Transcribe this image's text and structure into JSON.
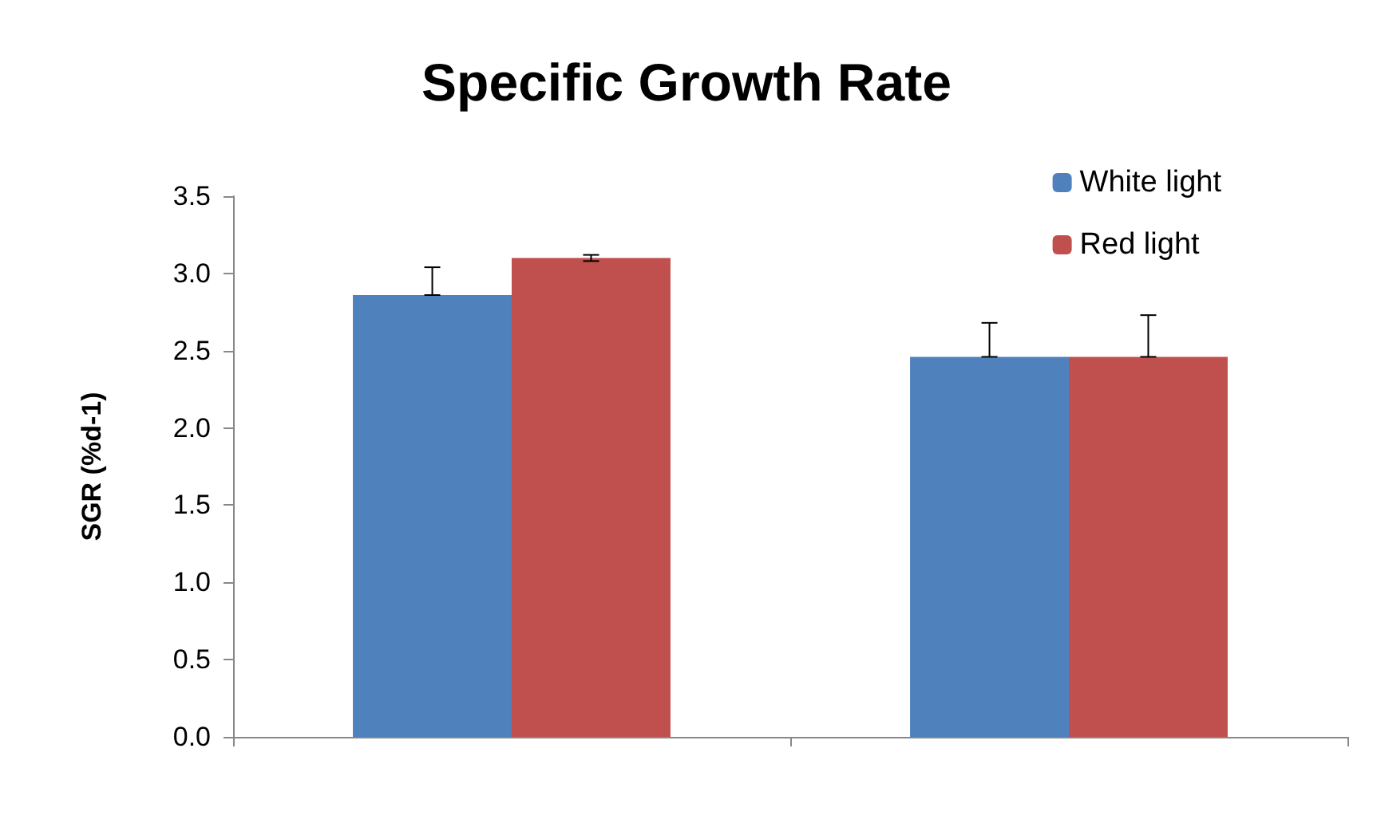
{
  "chart_data": {
    "type": "bar",
    "title": "Specific Growth Rate",
    "ylabel": "SGR (%d-1)",
    "categories": [
      null,
      null
    ],
    "series": [
      {
        "name": "White light",
        "color": "#4f81bd",
        "values": [
          2.86,
          2.46
        ],
        "errors": [
          [
            2.86,
            3.04
          ],
          [
            2.46,
            2.68
          ]
        ]
      },
      {
        "name": "Red light",
        "color": "#c0504d",
        "values": [
          3.1,
          2.46
        ],
        "errors": [
          [
            3.08,
            3.12
          ],
          [
            2.46,
            2.73
          ]
        ]
      }
    ],
    "ylim": [
      0,
      3.5
    ],
    "yticks": [
      {
        "value": 0,
        "label": "0.0"
      },
      0.5,
      {
        "value": 1,
        "label": "1.0"
      },
      1.5,
      {
        "value": 2,
        "label": "2.0"
      },
      2.5,
      {
        "value": 3,
        "label": "3.0"
      },
      3.5
    ],
    "grid": false,
    "legend": "top right"
  }
}
